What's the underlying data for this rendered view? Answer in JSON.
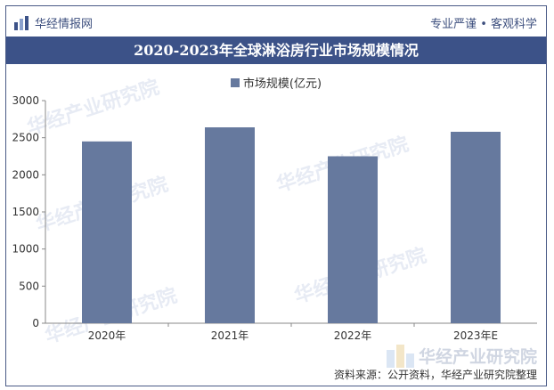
{
  "header": {
    "brand": "华经情报网",
    "tagline": "专业严谨 • 客观科学",
    "title": "2020-2023年全球淋浴房行业市场规模情况"
  },
  "watermark": {
    "text": "华经产业研究院",
    "url": "www.huaon.com"
  },
  "footer": {
    "logo_text": "华经产业研究院",
    "source": "资料来源：公开资料，华经产业研究院整理"
  },
  "colors": {
    "bar": "#66799e",
    "title_bg": "#3c5288",
    "axis": "#888888"
  },
  "chart_data": {
    "type": "bar",
    "categories": [
      "2020年",
      "2021年",
      "2022年",
      "2023年E"
    ],
    "series": [
      {
        "name": "市场规模(亿元)",
        "values": [
          2450,
          2640,
          2250,
          2580
        ]
      }
    ],
    "ylim": [
      0,
      3000
    ],
    "yticks": [
      "0",
      "500",
      "1000",
      "1500",
      "2000",
      "2500",
      "3000"
    ],
    "grid": false,
    "legend": "top-center"
  }
}
